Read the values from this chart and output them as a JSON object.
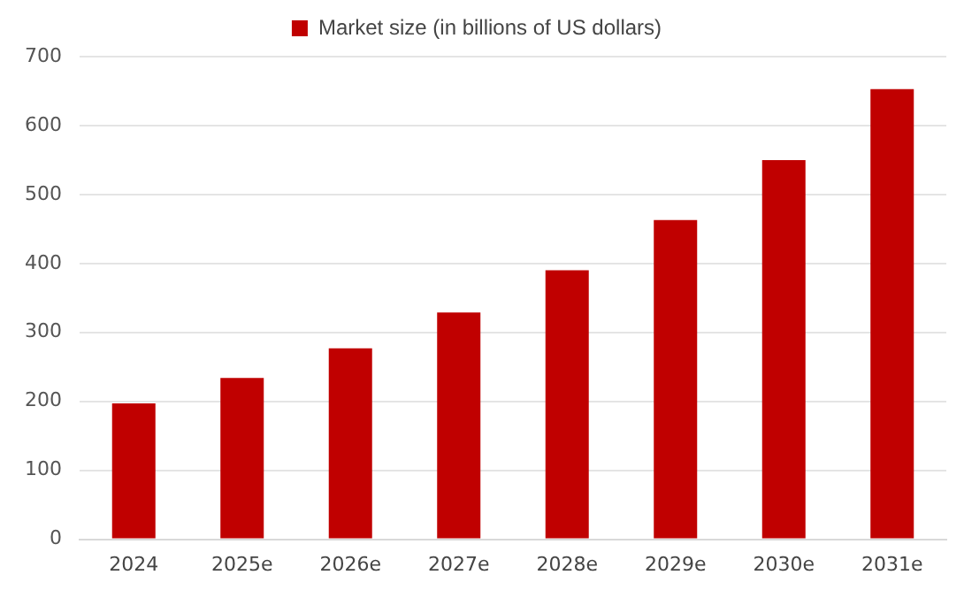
{
  "chart_data": {
    "type": "bar",
    "categories": [
      "2024",
      "2025e",
      "2026e",
      "2027e",
      "2028e",
      "2029e",
      "2030e",
      "2031e"
    ],
    "series": [
      {
        "name": "Market size (in billions of US dollars)",
        "color": "#c00000",
        "values": [
          197,
          234,
          277,
          329,
          390,
          463,
          550,
          653
        ]
      }
    ],
    "ylim": [
      0,
      700
    ],
    "yticks": [
      0,
      100,
      200,
      300,
      400,
      500,
      600,
      700
    ],
    "grid": "y",
    "legend": "top"
  }
}
